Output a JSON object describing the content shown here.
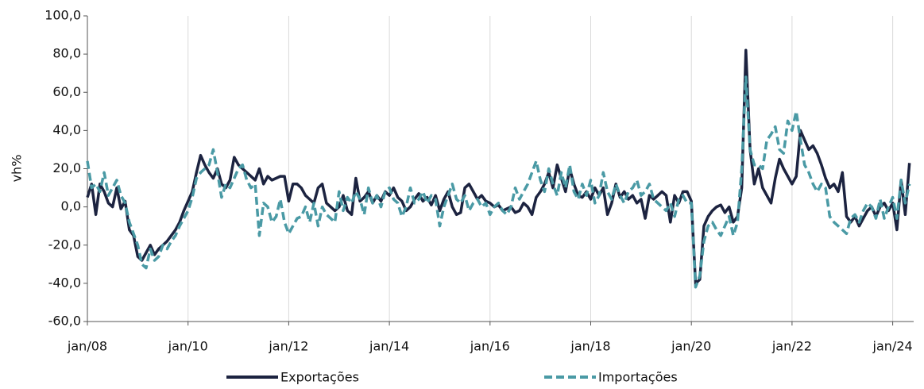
{
  "chart_data": {
    "type": "line",
    "y_label": "vh%",
    "categories": [
      "jan/08",
      null,
      null,
      null,
      null,
      null,
      null,
      null,
      null,
      null,
      null,
      null,
      null,
      null,
      null,
      null,
      null,
      null,
      null,
      null,
      null,
      null,
      null,
      null,
      "jan/10",
      null,
      null,
      null,
      null,
      null,
      null,
      null,
      null,
      null,
      null,
      null,
      null,
      null,
      null,
      null,
      null,
      null,
      null,
      null,
      null,
      null,
      null,
      null,
      "jan/12",
      null,
      null,
      null,
      null,
      null,
      null,
      null,
      null,
      null,
      null,
      null,
      null,
      null,
      null,
      null,
      null,
      null,
      null,
      null,
      null,
      null,
      null,
      null,
      "jan/14",
      null,
      null,
      null,
      null,
      null,
      null,
      null,
      null,
      null,
      null,
      null,
      null,
      null,
      null,
      null,
      null,
      null,
      null,
      null,
      null,
      null,
      null,
      null,
      "jan/16",
      null,
      null,
      null,
      null,
      null,
      null,
      null,
      null,
      null,
      null,
      null,
      null,
      null,
      null,
      null,
      null,
      null,
      null,
      null,
      null,
      null,
      null,
      null,
      "jan/18",
      null,
      null,
      null,
      null,
      null,
      null,
      null,
      null,
      null,
      null,
      null,
      null,
      null,
      null,
      null,
      null,
      null,
      null,
      null,
      null,
      null,
      null,
      null,
      "jan/20",
      null,
      null,
      null,
      null,
      null,
      null,
      null,
      null,
      null,
      null,
      null,
      null,
      null,
      null,
      null,
      null,
      null,
      null,
      null,
      null,
      null,
      null,
      null,
      "jan/22",
      null,
      null,
      null,
      null,
      null,
      null,
      null,
      null,
      null,
      null,
      null,
      null,
      null,
      null,
      null,
      null,
      null,
      null,
      null,
      null,
      null,
      null,
      null,
      "jan/24",
      null,
      null,
      null,
      null
    ],
    "series": [
      {
        "name": "Exportações",
        "color": "#1c2340",
        "dashed": false,
        "values": [
          5,
          12,
          -4,
          12,
          8,
          2,
          0,
          10,
          -1,
          3,
          -12,
          -15,
          -26,
          -28,
          -24,
          -20,
          -25,
          -22,
          -20,
          -18,
          -15,
          -12,
          -8,
          -2,
          3,
          8,
          18,
          27,
          22,
          18,
          15,
          20,
          12,
          10,
          14,
          26,
          22,
          20,
          18,
          16,
          14,
          20,
          12,
          16,
          14,
          15,
          16,
          16,
          3,
          12,
          12,
          10,
          6,
          4,
          2,
          10,
          12,
          2,
          0,
          -2,
          0,
          6,
          -2,
          -4,
          15,
          3,
          5,
          8,
          2,
          6,
          3,
          8,
          6,
          10,
          5,
          3,
          -2,
          0,
          4,
          7,
          3,
          5,
          1,
          6,
          -2,
          4,
          8,
          0,
          -4,
          -3,
          10,
          12,
          8,
          4,
          6,
          3,
          2,
          0,
          1,
          -2,
          -1,
          0,
          -3,
          -2,
          2,
          0,
          -4,
          5,
          8,
          12,
          18,
          10,
          22,
          15,
          8,
          20,
          12,
          6,
          5,
          8,
          4,
          10,
          6,
          10,
          -4,
          2,
          12,
          5,
          8,
          4,
          6,
          2,
          4,
          -6,
          6,
          4,
          6,
          8,
          6,
          -8,
          6,
          2,
          8,
          8,
          3,
          -40,
          -38,
          -10,
          -5,
          -2,
          0,
          1,
          -3,
          0,
          -8,
          -5,
          10,
          82,
          30,
          12,
          20,
          10,
          6,
          2,
          15,
          25,
          20,
          16,
          12,
          16,
          40,
          35,
          30,
          32,
          28,
          22,
          15,
          10,
          12,
          8,
          18,
          -5,
          -8,
          -5,
          -10,
          -6,
          -2,
          0,
          -5,
          0,
          2,
          -2,
          2,
          -12,
          14,
          -4,
          23
        ]
      },
      {
        "name": "Importações",
        "color": "#4a9aa5",
        "dashed": true,
        "values": [
          24,
          10,
          12,
          8,
          18,
          6,
          10,
          14,
          6,
          2,
          -8,
          -14,
          -20,
          -30,
          -32,
          -22,
          -28,
          -26,
          -20,
          -22,
          -18,
          -15,
          -10,
          -6,
          -2,
          5,
          15,
          18,
          20,
          22,
          30,
          18,
          5,
          12,
          10,
          15,
          20,
          22,
          14,
          10,
          12,
          -15,
          2,
          0,
          -8,
          -5,
          4,
          -8,
          -14,
          -10,
          -6,
          -5,
          0,
          -8,
          2,
          -10,
          0,
          -4,
          -6,
          -8,
          8,
          -2,
          5,
          2,
          8,
          4,
          -4,
          10,
          2,
          6,
          0,
          8,
          10,
          4,
          2,
          -5,
          0,
          10,
          2,
          4,
          8,
          2,
          6,
          4,
          -10,
          0,
          6,
          12,
          4,
          2,
          6,
          -2,
          2,
          4,
          0,
          2,
          -4,
          0,
          2,
          -2,
          -4,
          0,
          10,
          4,
          8,
          12,
          18,
          24,
          14,
          8,
          20,
          12,
          6,
          18,
          10,
          22,
          8,
          4,
          12,
          6,
          14,
          2,
          6,
          18,
          8,
          4,
          12,
          6,
          2,
          8,
          10,
          14,
          6,
          8,
          12,
          4,
          2,
          0,
          -2,
          2,
          -5,
          4,
          6,
          2,
          2,
          -42,
          -36,
          -18,
          -10,
          -8,
          -12,
          -15,
          -10,
          -5,
          -15,
          -8,
          20,
          68,
          30,
          22,
          22,
          20,
          35,
          38,
          42,
          30,
          28,
          45,
          40,
          50,
          35,
          22,
          18,
          12,
          8,
          12,
          10,
          -5,
          -8,
          -10,
          -12,
          -14,
          -6,
          -4,
          -8,
          -2,
          2,
          0,
          -6,
          4,
          -6,
          0,
          5,
          -6,
          14,
          2,
          12
        ]
      }
    ],
    "ylim": [
      -60,
      100
    ],
    "yticks": [
      {
        "value": -60,
        "label": "-60,0"
      },
      {
        "value": -40,
        "label": "-40,0"
      },
      {
        "value": -20,
        "label": "-20,0"
      },
      {
        "value": 0,
        "label": "0,0"
      },
      {
        "value": 20,
        "label": "20,0"
      },
      {
        "value": 40,
        "label": "40,0"
      },
      {
        "value": 60,
        "label": "60,0"
      },
      {
        "value": 80,
        "label": "80,0"
      },
      {
        "value": 100,
        "label": "100,0"
      }
    ],
    "grid": "x",
    "legend": "bottom"
  }
}
